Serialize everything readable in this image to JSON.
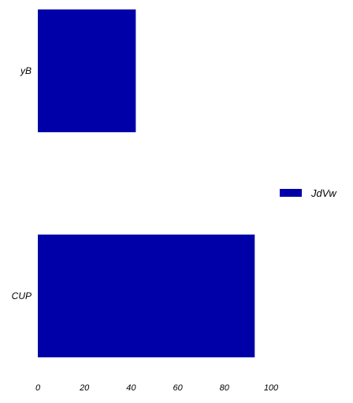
{
  "chart_data": {
    "type": "bar",
    "orientation": "horizontal",
    "categories": [
      "yB",
      "CUP"
    ],
    "series": [
      {
        "name": "JdVw",
        "values": [
          42,
          93
        ],
        "color": "#0000A8"
      }
    ],
    "xlim": [
      0,
      100
    ],
    "xticks": [
      "0",
      "20",
      "40",
      "60",
      "80",
      "100"
    ],
    "grid": false,
    "legend_position": "right",
    "title": "",
    "xlabel": "",
    "ylabel": ""
  }
}
